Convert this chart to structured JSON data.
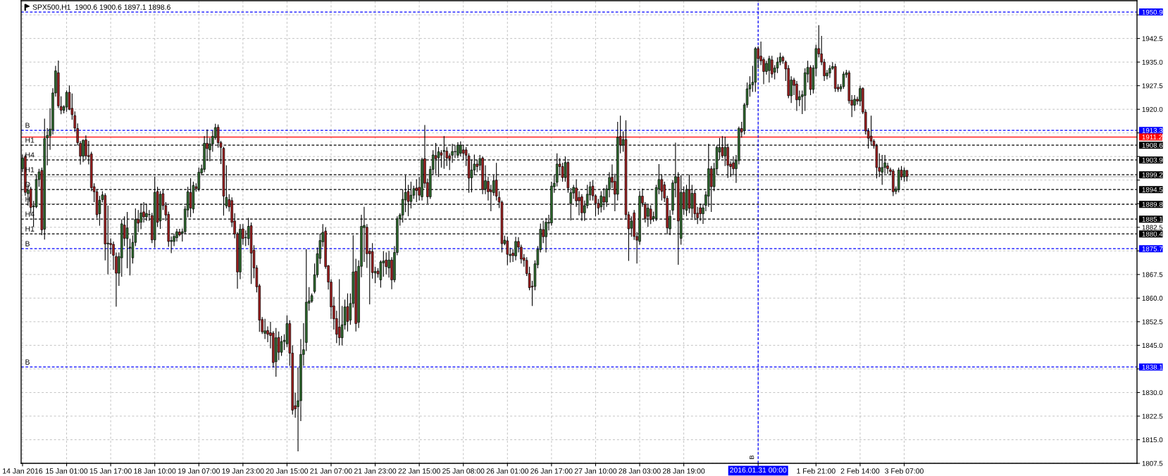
{
  "chart_data": {
    "type": "candlestick",
    "title": "SPX500,H1  1900.6 1900.6 1897.1 1898.6",
    "categories": [
      "14 Jan 2016",
      null,
      null,
      null,
      null,
      null,
      null,
      null,
      null,
      null,
      null,
      null,
      null,
      null,
      null,
      null,
      "15 Jan 01:00",
      null,
      null,
      null,
      null,
      null,
      null,
      null,
      null,
      null,
      null,
      null,
      null,
      null,
      null,
      null,
      "15 Jan 17:00",
      null,
      null,
      null,
      null,
      null,
      null,
      null,
      null,
      null,
      null,
      null,
      null,
      null,
      null,
      null,
      "18 Jan 10:00",
      null,
      null,
      null,
      null,
      null,
      null,
      null,
      null,
      null,
      null,
      null,
      null,
      null,
      null,
      null,
      "19 Jan 07:00",
      null,
      null,
      null,
      null,
      null,
      null,
      null,
      null,
      null,
      null,
      null,
      null,
      null,
      null,
      null,
      "19 Jan 23:00",
      null,
      null,
      null,
      null,
      null,
      null,
      null,
      null,
      null,
      null,
      null,
      null,
      null,
      null,
      null,
      "20 Jan 15:00",
      null,
      null,
      null,
      null,
      null,
      null,
      null,
      null,
      null,
      null,
      null,
      null,
      null,
      null,
      null,
      "21 Jan 07:00",
      null,
      null,
      null,
      null,
      null,
      null,
      null,
      null,
      null,
      null,
      null,
      null,
      null,
      null,
      null,
      "21 Jan 23:00",
      null,
      null,
      null,
      null,
      null,
      null,
      null,
      null,
      null,
      null,
      null,
      null,
      null,
      null,
      null,
      "22 Jan 15:00",
      null,
      null,
      null,
      null,
      null,
      null,
      null,
      null,
      null,
      null,
      null,
      null,
      null,
      null,
      null,
      "25 Jan 08:00",
      null,
      null,
      null,
      null,
      null,
      null,
      null,
      null,
      null,
      null,
      null,
      null,
      null,
      null,
      null,
      "26 Jan 01:00",
      null,
      null,
      null,
      null,
      null,
      null,
      null,
      null,
      null,
      null,
      null,
      null,
      null,
      null,
      null,
      "26 Jan 17:00",
      null,
      null,
      null,
      null,
      null,
      null,
      null,
      null,
      null,
      null,
      null,
      null,
      null,
      null,
      null,
      "27 Jan 10:00",
      null,
      null,
      null,
      null,
      null,
      null,
      null,
      null,
      null,
      null,
      null,
      null,
      null,
      null,
      null,
      "28 Jan 03:00",
      null,
      null,
      null,
      null,
      null,
      null,
      null,
      null,
      null,
      null,
      null,
      null,
      null,
      null,
      null,
      "28 Jan 19:00",
      null,
      null,
      null,
      null,
      null,
      null,
      null,
      null,
      null,
      null,
      null,
      null,
      null,
      null,
      null,
      null,
      null,
      null,
      null,
      null,
      null,
      null,
      null,
      null,
      null,
      null,
      "2016.01.31 00:00",
      null,
      null,
      null,
      null,
      null,
      null,
      null,
      null,
      null,
      null,
      null,
      null,
      null,
      null,
      null,
      null,
      null,
      null,
      null,
      null,
      "1 Feb 21:00",
      null,
      null,
      null,
      null,
      null,
      null,
      null,
      null,
      null,
      null,
      null,
      null,
      null,
      null,
      null,
      "2 Feb 14:00",
      null,
      null,
      null,
      null,
      null,
      null,
      null,
      null,
      null,
      null,
      null,
      null,
      null,
      null,
      null,
      "3 Feb 07:00",
      null,
      null,
      null,
      null,
      null,
      null,
      null,
      null,
      null,
      null,
      null,
      null,
      null,
      null,
      null,
      null,
      null,
      null,
      null,
      null,
      null,
      null,
      null,
      null,
      null,
      null,
      null,
      null,
      null,
      null,
      null,
      null,
      null,
      null,
      null,
      null,
      null,
      null,
      null,
      null,
      null,
      null,
      null,
      null,
      null,
      null,
      null,
      null,
      null,
      null,
      null,
      null,
      null,
      null,
      null,
      null,
      null,
      null,
      null,
      null,
      null,
      null,
      null,
      null,
      null,
      null,
      null,
      null,
      null,
      null,
      null,
      null,
      null,
      null,
      null,
      null,
      null,
      null,
      null,
      null,
      null,
      null,
      null,
      null
    ],
    "ohlc": [
      [
        1901.1,
        1905.6,
        1900.0,
        1904.5
      ],
      [
        1905.0,
        1905.6,
        1892.5,
        1893.6
      ],
      [
        1893.2,
        1896.2,
        1889.4,
        1894.3
      ],
      [
        1894.7,
        1895.4,
        1886.8,
        1888.8
      ],
      [
        1889.0,
        1890.9,
        1882.6,
        1889.3
      ],
      [
        1889.0,
        1899.2,
        1888.6,
        1897.7
      ],
      [
        1897.7,
        1901.1,
        1895.4,
        1900.1
      ],
      [
        1900.6,
        1901.5,
        1880.0,
        1881.7
      ],
      [
        1881.9,
        1917.0,
        1878.6,
        1910.7
      ],
      [
        1910.9,
        1914.0,
        1902.2,
        1911.7
      ],
      [
        1911.6,
        1920.3,
        1907.1,
        1913.7
      ],
      [
        1913.5,
        1926.7,
        1912.0,
        1925.2
      ],
      [
        1925.2,
        1933.8,
        1924.0,
        1932.2
      ],
      [
        1931.6,
        1935.5,
        1920.4,
        1921.1
      ],
      [
        1920.9,
        1924.1,
        1918.4,
        1919.7
      ],
      [
        1919.7,
        1921.3,
        1918.7,
        1920.8
      ],
      [
        1920.7,
        1926.0,
        1919.2,
        1925.4
      ],
      [
        1925.4,
        1927.6,
        1919.7,
        1920.0
      ],
      [
        1920.3,
        1925.0,
        1916.7,
        1918.3
      ],
      [
        1918.0,
        1919.3,
        1912.8,
        1914.0
      ],
      [
        1913.9,
        1915.5,
        1908.5,
        1909.4
      ],
      [
        1909.2,
        1909.9,
        1902.4,
        1905.1
      ],
      [
        1905.1,
        1910.5,
        1903.2,
        1910.1
      ],
      [
        1910.3,
        1911.7,
        1904.0,
        1905.2
      ],
      [
        1905.3,
        1910.0,
        1902.5,
        1905.0
      ],
      [
        1905.8,
        1906.5,
        1894.0,
        1895.1
      ],
      [
        1895.4,
        1896.5,
        1890.5,
        1893.8
      ],
      [
        1893.8,
        1894.5,
        1885.5,
        1886.5
      ],
      [
        1886.8,
        1892.5,
        1883.0,
        1891.1
      ],
      [
        1891.3,
        1894.0,
        1890.4,
        1892.8
      ],
      [
        1892.6,
        1893.3,
        1872.0,
        1877.2
      ],
      [
        1877.2,
        1889.4,
        1867.6,
        1877.5
      ],
      [
        1877.4,
        1879.0,
        1874.0,
        1877.0
      ],
      [
        1877.1,
        1878.0,
        1869.0,
        1873.6
      ],
      [
        1873.2,
        1874.5,
        1857.3,
        1867.9
      ],
      [
        1867.9,
        1874.5,
        1863.9,
        1873.2
      ],
      [
        1872.8,
        1885.0,
        1866.8,
        1883.6
      ],
      [
        1883.2,
        1886.0,
        1876.5,
        1879.0
      ],
      [
        1878.9,
        1887.4,
        1869.5,
        1882.3
      ],
      [
        1875.9,
        1878.9,
        1867.2,
        1876.2
      ],
      [
        1872.8,
        1880.0,
        1871.0,
        1877.7
      ],
      [
        1877.7,
        1888.5,
        1876.5,
        1885.0
      ],
      [
        1885.0,
        1888.0,
        1881.0,
        1883.8
      ],
      [
        1884.1,
        1890.0,
        1881.9,
        1887.1
      ],
      [
        1887.4,
        1890.5,
        1884.0,
        1885.8
      ],
      [
        1885.8,
        1890.0,
        1884.5,
        1886.9
      ],
      [
        1886.5,
        1888.0,
        1884.5,
        1886.6
      ],
      [
        1886.2,
        1887.1,
        1877.5,
        1878.5
      ],
      [
        1878.5,
        1898.6,
        1876.0,
        1893.6
      ],
      [
        1893.9,
        1895.4,
        1882.6,
        1884.1
      ],
      [
        1884.5,
        1894.0,
        1882.0,
        1893.0
      ],
      [
        1893.2,
        1894.4,
        1888.0,
        1889.4
      ],
      [
        1889.4,
        1890.5,
        1884.5,
        1886.4
      ],
      [
        1886.6,
        1887.5,
        1876.3,
        1878.0
      ],
      [
        1878.0,
        1879.6,
        1874.3,
        1878.3
      ],
      [
        1878.0,
        1880.5,
        1876.5,
        1879.6
      ],
      [
        1879.2,
        1882.0,
        1878.0,
        1881.1
      ],
      [
        1881.0,
        1882.0,
        1879.6,
        1880.1
      ],
      [
        1880.6,
        1882.1,
        1878.0,
        1881.1
      ],
      [
        1881.1,
        1889.3,
        1880.4,
        1888.3
      ],
      [
        1888.0,
        1895.4,
        1885.7,
        1893.8
      ],
      [
        1893.6,
        1898.1,
        1885.7,
        1888.6
      ],
      [
        1888.3,
        1897.0,
        1887.0,
        1895.8
      ],
      [
        1895.4,
        1896.5,
        1893.8,
        1894.8
      ],
      [
        1894.7,
        1901.5,
        1894.0,
        1900.0
      ],
      [
        1899.8,
        1902.4,
        1899.0,
        1901.1
      ],
      [
        1900.9,
        1911.5,
        1900.0,
        1909.2
      ],
      [
        1909.2,
        1913.6,
        1903.6,
        1907.5
      ],
      [
        1907.1,
        1910.9,
        1903.5,
        1909.0
      ],
      [
        1909.0,
        1913.3,
        1906.5,
        1911.4
      ],
      [
        1911.0,
        1915.4,
        1910.3,
        1914.2
      ],
      [
        1914.3,
        1915.2,
        1907.8,
        1909.4
      ],
      [
        1909.4,
        1910.0,
        1902.6,
        1907.9
      ],
      [
        1907.6,
        1908.1,
        1886.2,
        1892.4
      ],
      [
        1889.3,
        1902.2,
        1888.5,
        1892.0
      ],
      [
        1891.3,
        1893.0,
        1887.5,
        1889.0
      ],
      [
        1891.0,
        1892.0,
        1882.6,
        1884.1
      ],
      [
        1884.5,
        1887.0,
        1879.0,
        1880.4
      ],
      [
        1880.4,
        1881.0,
        1863.0,
        1868.3
      ],
      [
        1868.3,
        1883.5,
        1866.0,
        1881.9
      ],
      [
        1882.0,
        1883.5,
        1877.0,
        1878.9
      ],
      [
        1879.2,
        1881.5,
        1876.5,
        1879.3
      ],
      [
        1878.9,
        1885.5,
        1876.8,
        1882.8
      ],
      [
        1883.0,
        1884.0,
        1864.5,
        1874.3
      ],
      [
        1875.2,
        1876.8,
        1866.3,
        1869.6
      ],
      [
        1869.6,
        1870.5,
        1861.8,
        1863.6
      ],
      [
        1863.9,
        1864.5,
        1849.3,
        1853.0
      ],
      [
        1853.2,
        1854.0,
        1848.6,
        1849.3
      ],
      [
        1848.8,
        1853.4,
        1847.0,
        1849.6
      ],
      [
        1849.7,
        1851.0,
        1846.0,
        1848.5
      ],
      [
        1849.0,
        1852.5,
        1844.0,
        1848.1
      ],
      [
        1848.9,
        1849.5,
        1838.0,
        1839.5
      ],
      [
        1839.8,
        1850.5,
        1835.0,
        1847.4
      ],
      [
        1847.5,
        1849.4,
        1840.3,
        1842.8
      ],
      [
        1842.8,
        1848.0,
        1841.6,
        1846.2
      ],
      [
        1846.2,
        1848.5,
        1843.5,
        1846.6
      ],
      [
        1845.5,
        1854.5,
        1844.5,
        1851.9
      ],
      [
        1851.9,
        1853.0,
        1838.5,
        1842.5
      ],
      [
        1842.5,
        1845.0,
        1823.0,
        1824.4
      ],
      [
        1825.8,
        1830.0,
        1822.0,
        1824.8
      ],
      [
        1825.5,
        1838.0,
        1811.3,
        1827.4
      ],
      [
        1827.4,
        1847.0,
        1820.9,
        1842.1
      ],
      [
        1842.1,
        1852.0,
        1838.5,
        1843.6
      ],
      [
        1845.9,
        1875.6,
        1843.2,
        1858.7
      ],
      [
        1858.4,
        1863.5,
        1856.0,
        1859.1
      ],
      [
        1859.0,
        1861.5,
        1858.5,
        1860.8
      ],
      [
        1862.1,
        1871.0,
        1861.5,
        1867.4
      ],
      [
        1867.4,
        1876.1,
        1866.5,
        1874.1
      ],
      [
        1872.6,
        1880.5,
        1870.9,
        1878.3
      ],
      [
        1877.9,
        1883.5,
        1876.3,
        1880.9
      ],
      [
        1881.3,
        1882.5,
        1869.3,
        1870.0
      ],
      [
        1870.3,
        1870.5,
        1862.7,
        1865.1
      ],
      [
        1865.1,
        1866.0,
        1853.4,
        1857.2
      ],
      [
        1857.5,
        1860.4,
        1850.0,
        1853.4
      ],
      [
        1853.5,
        1856.0,
        1845.7,
        1848.5
      ],
      [
        1850.8,
        1866.0,
        1845.0,
        1847.4
      ],
      [
        1847.4,
        1857.5,
        1845.0,
        1851.5
      ],
      [
        1851.5,
        1859.5,
        1850.0,
        1857.2
      ],
      [
        1857.3,
        1861.5,
        1849.4,
        1852.6
      ],
      [
        1853.0,
        1861.5,
        1851.5,
        1858.3
      ],
      [
        1858.3,
        1880.0,
        1857.0,
        1868.3
      ],
      [
        1868.5,
        1872.5,
        1849.4,
        1851.9
      ],
      [
        1852.3,
        1872.0,
        1850.5,
        1870.1
      ],
      [
        1870.1,
        1886.5,
        1866.6,
        1882.8
      ],
      [
        1882.4,
        1889.0,
        1871.5,
        1883.1
      ],
      [
        1882.5,
        1883.5,
        1869.6,
        1874.1
      ],
      [
        1874.9,
        1875.9,
        1858.0,
        1874.1
      ],
      [
        1874.8,
        1877.5,
        1866.2,
        1868.1
      ],
      [
        1868.0,
        1870.0,
        1864.7,
        1868.5
      ],
      [
        1868.6,
        1869.5,
        1866.5,
        1867.7
      ],
      [
        1865.8,
        1872.0,
        1863.3,
        1871.5
      ],
      [
        1871.2,
        1874.9,
        1866.8,
        1871.8
      ],
      [
        1872.1,
        1874.5,
        1867.5,
        1870.0
      ],
      [
        1869.6,
        1875.0,
        1866.5,
        1872.1
      ],
      [
        1872.1,
        1873.0,
        1862.8,
        1865.8
      ],
      [
        1865.8,
        1876.5,
        1865.0,
        1874.5
      ],
      [
        1874.5,
        1886.0,
        1873.6,
        1885.2
      ],
      [
        1885.2,
        1887.0,
        1883.0,
        1886.4
      ],
      [
        1886.4,
        1894.6,
        1884.0,
        1891.4
      ],
      [
        1891.2,
        1899.0,
        1887.3,
        1893.6
      ],
      [
        1893.9,
        1896.0,
        1886.0,
        1890.7
      ],
      [
        1890.7,
        1897.0,
        1888.5,
        1892.7
      ],
      [
        1892.7,
        1895.7,
        1891.5,
        1894.8
      ],
      [
        1895.0,
        1897.8,
        1890.5,
        1894.2
      ],
      [
        1895.2,
        1898.5,
        1891.0,
        1892.7
      ],
      [
        1892.2,
        1904.6,
        1891.0,
        1904.0
      ],
      [
        1904.3,
        1915.0,
        1895.0,
        1896.5
      ],
      [
        1896.7,
        1898.0,
        1890.0,
        1892.2
      ],
      [
        1892.2,
        1902.0,
        1891.5,
        1900.9
      ],
      [
        1900.9,
        1907.0,
        1899.0,
        1905.5
      ],
      [
        1905.3,
        1909.3,
        1899.5,
        1904.3
      ],
      [
        1904.6,
        1908.0,
        1898.5,
        1906.5
      ],
      [
        1906.2,
        1907.0,
        1901.5,
        1905.4
      ],
      [
        1906.6,
        1911.5,
        1901.1,
        1906.9
      ],
      [
        1906.7,
        1908.0,
        1902.0,
        1904.5
      ],
      [
        1905.2,
        1906.0,
        1900.7,
        1904.3
      ],
      [
        1905.4,
        1909.0,
        1903.0,
        1906.6
      ],
      [
        1906.5,
        1908.5,
        1904.5,
        1906.6
      ],
      [
        1905.4,
        1909.5,
        1904.5,
        1908.6
      ],
      [
        1906.0,
        1909.8,
        1905.0,
        1908.6
      ],
      [
        1907.1,
        1908.6,
        1904.0,
        1906.0
      ],
      [
        1907.1,
        1908.0,
        1902.0,
        1905.4
      ],
      [
        1905.2,
        1906.0,
        1893.5,
        1898.1
      ],
      [
        1898.2,
        1904.0,
        1893.6,
        1900.7
      ],
      [
        1900.7,
        1905.6,
        1899.0,
        1902.6
      ],
      [
        1902.6,
        1904.0,
        1900.0,
        1901.8
      ],
      [
        1902.2,
        1905.5,
        1900.6,
        1904.3
      ],
      [
        1904.5,
        1905.0,
        1893.0,
        1894.5
      ],
      [
        1894.7,
        1902.2,
        1893.0,
        1897.3
      ],
      [
        1897.1,
        1898.5,
        1891.0,
        1893.8
      ],
      [
        1894.3,
        1896.0,
        1887.6,
        1893.8
      ],
      [
        1893.5,
        1899.0,
        1892.5,
        1897.3
      ],
      [
        1897.5,
        1903.0,
        1891.0,
        1892.4
      ],
      [
        1892.0,
        1894.0,
        1888.6,
        1890.5
      ],
      [
        1890.5,
        1891.0,
        1874.5,
        1877.3
      ],
      [
        1877.3,
        1879.8,
        1876.8,
        1878.4
      ],
      [
        1878.2,
        1879.5,
        1870.5,
        1873.9
      ],
      [
        1873.5,
        1876.0,
        1871.3,
        1873.9
      ],
      [
        1874.3,
        1875.5,
        1871.5,
        1873.5
      ],
      [
        1873.4,
        1879.5,
        1872.0,
        1878.0
      ],
      [
        1878.0,
        1879.4,
        1874.5,
        1876.2
      ],
      [
        1876.2,
        1877.0,
        1871.0,
        1872.4
      ],
      [
        1872.8,
        1874.0,
        1870.0,
        1872.0
      ],
      [
        1872.0,
        1873.0,
        1867.0,
        1867.8
      ],
      [
        1867.8,
        1870.0,
        1862.5,
        1863.3
      ],
      [
        1863.8,
        1865.5,
        1857.5,
        1863.5
      ],
      [
        1863.7,
        1872.0,
        1862.5,
        1870.9
      ],
      [
        1870.6,
        1876.5,
        1869.5,
        1875.5
      ],
      [
        1875.4,
        1883.7,
        1874.5,
        1881.9
      ],
      [
        1881.8,
        1884.6,
        1877.5,
        1879.5
      ],
      [
        1879.5,
        1885.5,
        1874.5,
        1884.1
      ],
      [
        1883.8,
        1886.5,
        1881.5,
        1884.1
      ],
      [
        1883.9,
        1897.0,
        1883.0,
        1895.6
      ],
      [
        1895.4,
        1899.0,
        1893.5,
        1896.5
      ],
      [
        1896.8,
        1906.0,
        1895.5,
        1902.6
      ],
      [
        1902.6,
        1904.5,
        1899.0,
        1901.8
      ],
      [
        1901.8,
        1903.0,
        1897.0,
        1898.3
      ],
      [
        1898.3,
        1905.0,
        1897.0,
        1903.1
      ],
      [
        1903.1,
        1903.5,
        1893.5,
        1895.0
      ],
      [
        1890.1,
        1895.0,
        1884.7,
        1893.5
      ],
      [
        1893.4,
        1896.0,
        1891.5,
        1895.2
      ],
      [
        1895.0,
        1897.8,
        1889.0,
        1890.9
      ],
      [
        1892.0,
        1894.0,
        1886.3,
        1890.9
      ],
      [
        1892.2,
        1893.0,
        1884.5,
        1887.1
      ],
      [
        1887.1,
        1891.0,
        1884.5,
        1889.4
      ],
      [
        1889.4,
        1896.0,
        1888.5,
        1893.0
      ],
      [
        1892.8,
        1897.0,
        1891.0,
        1895.4
      ],
      [
        1895.6,
        1897.5,
        1891.0,
        1892.5
      ],
      [
        1892.5,
        1893.0,
        1886.0,
        1890.1
      ],
      [
        1890.1,
        1891.5,
        1886.5,
        1888.6
      ],
      [
        1889.0,
        1894.0,
        1887.2,
        1892.5
      ],
      [
        1892.2,
        1895.0,
        1888.0,
        1890.5
      ],
      [
        1890.5,
        1896.0,
        1889.0,
        1894.7
      ],
      [
        1894.5,
        1900.0,
        1892.0,
        1898.3
      ],
      [
        1898.4,
        1902.5,
        1895.0,
        1896.8
      ],
      [
        1897.1,
        1899.5,
        1887.6,
        1893.0
      ],
      [
        1893.0,
        1916.0,
        1891.0,
        1911.1
      ],
      [
        1911.4,
        1918.0,
        1906.0,
        1908.6
      ],
      [
        1908.6,
        1913.0,
        1906.5,
        1910.4
      ],
      [
        1910.4,
        1916.5,
        1885.0,
        1886.5
      ],
      [
        1886.5,
        1887.5,
        1871.8,
        1882.0
      ],
      [
        1882.2,
        1886.0,
        1879.5,
        1884.5
      ],
      [
        1887.1,
        1888.0,
        1878.5,
        1879.6
      ],
      [
        1879.6,
        1881.0,
        1871.0,
        1878.4
      ],
      [
        1878.0,
        1894.0,
        1877.0,
        1892.4
      ],
      [
        1892.4,
        1894.8,
        1889.0,
        1890.2
      ],
      [
        1889.8,
        1890.5,
        1884.0,
        1885.3
      ],
      [
        1886.0,
        1889.6,
        1882.6,
        1888.6
      ],
      [
        1888.3,
        1889.5,
        1883.5,
        1884.9
      ],
      [
        1885.2,
        1887.5,
        1884.3,
        1885.9
      ],
      [
        1885.3,
        1896.0,
        1884.5,
        1895.1
      ],
      [
        1894.7,
        1902.6,
        1893.0,
        1897.7
      ],
      [
        1897.7,
        1899.3,
        1891.0,
        1893.9
      ],
      [
        1896.0,
        1897.0,
        1890.5,
        1891.8
      ],
      [
        1891.7,
        1892.5,
        1880.3,
        1882.3
      ],
      [
        1882.0,
        1888.0,
        1880.0,
        1886.0
      ],
      [
        1887.9,
        1897.5,
        1886.5,
        1896.6
      ],
      [
        1896.6,
        1909.4,
        1892.0,
        1898.6
      ],
      [
        1898.5,
        1900.0,
        1870.6,
        1884.5
      ],
      [
        1879.0,
        1899.0,
        1877.0,
        1893.6
      ],
      [
        1893.6,
        1895.5,
        1886.5,
        1888.3
      ],
      [
        1887.9,
        1896.0,
        1886.0,
        1894.5
      ],
      [
        1894.5,
        1899.3,
        1887.0,
        1888.5
      ],
      [
        1888.5,
        1896.0,
        1885.5,
        1893.3
      ],
      [
        1893.3,
        1894.5,
        1884.8,
        1886.8
      ],
      [
        1887.0,
        1889.0,
        1883.5,
        1885.5
      ],
      [
        1888.7,
        1890.0,
        1884.5,
        1886.8
      ],
      [
        1886.8,
        1890.0,
        1883.6,
        1888.7
      ],
      [
        1889.5,
        1894.0,
        1887.6,
        1892.8
      ],
      [
        1892.4,
        1909.0,
        1889.0,
        1901.1
      ],
      [
        1901.1,
        1902.0,
        1887.4,
        1895.4
      ],
      [
        1895.4,
        1903.0,
        1894.0,
        1901.1
      ],
      [
        1901.1,
        1908.5,
        1899.2,
        1907.9
      ],
      [
        1906.4,
        1910.9,
        1904.0,
        1907.9
      ],
      [
        1907.9,
        1911.5,
        1904.5,
        1905.2
      ],
      [
        1905.2,
        1911.3,
        1902.0,
        1907.9
      ],
      [
        1907.9,
        1909.0,
        1898.2,
        1902.2
      ],
      [
        1902.6,
        1903.5,
        1898.5,
        1901.8
      ],
      [
        1903.0,
        1905.0,
        1899.0,
        1901.1
      ],
      [
        1901.1,
        1905.5,
        1896.6,
        1903.7
      ],
      [
        1903.7,
        1914.5,
        1902.5,
        1913.9
      ],
      [
        1913.9,
        1916.0,
        1911.0,
        1912.8
      ],
      [
        1913.2,
        1922.0,
        1912.0,
        1921.4
      ],
      [
        1921.4,
        1928.5,
        1920.5,
        1926.5
      ],
      [
        1926.5,
        1930.5,
        1924.0,
        1927.8
      ],
      [
        1927.8,
        1933.8,
        1925.5,
        1928.6
      ],
      [
        1928.6,
        1939.8,
        1925.5,
        1939.3
      ],
      [
        1939.3,
        1940.0,
        1933.0,
        1936.1
      ],
      [
        1936.9,
        1941.5,
        1934.0,
        1935.4
      ],
      [
        1935.8,
        1936.5,
        1928.0,
        1932.0
      ],
      [
        1932.0,
        1935.4,
        1931.0,
        1934.6
      ],
      [
        1932.3,
        1937.0,
        1928.5,
        1936.1
      ],
      [
        1935.7,
        1937.0,
        1930.0,
        1931.2
      ],
      [
        1931.8,
        1934.0,
        1929.5,
        1933.1
      ],
      [
        1933.1,
        1936.5,
        1931.5,
        1935.0
      ],
      [
        1935.0,
        1938.0,
        1934.0,
        1936.6
      ],
      [
        1936.5,
        1937.0,
        1934.5,
        1935.4
      ],
      [
        1935.0,
        1935.5,
        1929.0,
        1932.8
      ],
      [
        1933.0,
        1934.0,
        1923.5,
        1924.3
      ],
      [
        1924.3,
        1930.5,
        1922.0,
        1929.3
      ],
      [
        1929.3,
        1930.0,
        1924.5,
        1927.6
      ],
      [
        1928.0,
        1929.0,
        1919.5,
        1923.0
      ],
      [
        1923.0,
        1926.0,
        1921.0,
        1924.0
      ],
      [
        1924.0,
        1926.0,
        1918.5,
        1924.6
      ],
      [
        1924.4,
        1933.0,
        1919.5,
        1931.6
      ],
      [
        1931.2,
        1935.4,
        1928.5,
        1933.3
      ],
      [
        1933.3,
        1934.0,
        1924.5,
        1926.3
      ],
      [
        1926.3,
        1934.0,
        1925.0,
        1933.1
      ],
      [
        1933.0,
        1940.5,
        1930.5,
        1939.3
      ],
      [
        1939.3,
        1946.7,
        1936.5,
        1937.6
      ],
      [
        1937.6,
        1943.3,
        1934.0,
        1935.0
      ],
      [
        1935.0,
        1936.0,
        1929.0,
        1930.6
      ],
      [
        1930.6,
        1932.5,
        1929.5,
        1931.5
      ],
      [
        1931.5,
        1934.0,
        1930.0,
        1933.0
      ],
      [
        1933.0,
        1935.0,
        1932.5,
        1933.6
      ],
      [
        1933.6,
        1934.5,
        1925.5,
        1926.6
      ],
      [
        1927.0,
        1928.0,
        1925.5,
        1926.4
      ],
      [
        1926.5,
        1928.0,
        1925.6,
        1927.2
      ],
      [
        1927.2,
        1932.0,
        1926.5,
        1931.2
      ],
      [
        1931.0,
        1932.5,
        1930.0,
        1931.6
      ],
      [
        1931.6,
        1932.3,
        1921.8,
        1922.7
      ],
      [
        1922.9,
        1924.5,
        1917.5,
        1921.3
      ],
      [
        1921.3,
        1924.5,
        1919.5,
        1923.2
      ],
      [
        1923.2,
        1924.0,
        1921.5,
        1922.6
      ],
      [
        1922.6,
        1927.5,
        1921.0,
        1926.6
      ],
      [
        1926.6,
        1927.0,
        1918.5,
        1919.1
      ],
      [
        1919.1,
        1920.0,
        1912.0,
        1913.1
      ],
      [
        1913.1,
        1914.0,
        1907.5,
        1910.8
      ],
      [
        1911.5,
        1918.0,
        1908.5,
        1909.9
      ],
      [
        1909.9,
        1910.5,
        1907.5,
        1908.4
      ],
      [
        1908.4,
        1909.0,
        1898.0,
        1901.5
      ],
      [
        1901.5,
        1906.0,
        1898.5,
        1900.3
      ],
      [
        1900.0,
        1905.5,
        1896.0,
        1901.5
      ],
      [
        1901.5,
        1905.5,
        1899.5,
        1903.0
      ],
      [
        1902.0,
        1903.0,
        1899.5,
        1901.1
      ],
      [
        1900.8,
        1901.5,
        1899.0,
        1900.2
      ],
      [
        1900.4,
        1901.0,
        1892.4,
        1893.8
      ],
      [
        1893.9,
        1895.5,
        1893.0,
        1894.7
      ],
      [
        1894.5,
        1901.5,
        1893.6,
        1900.7
      ],
      [
        1900.7,
        1902.0,
        1897.5,
        1898.5
      ],
      [
        1898.5,
        1901.5,
        1897.0,
        1900.6
      ],
      [
        1900.6,
        1900.6,
        1897.1,
        1898.6
      ],
      null,
      null,
      null,
      null,
      null,
      null,
      null,
      null,
      null,
      null,
      null,
      null,
      null,
      null,
      null,
      null,
      null,
      null,
      null,
      null,
      null,
      null,
      null,
      null,
      null,
      null,
      null,
      null,
      null,
      null,
      null,
      null,
      null,
      null,
      null,
      null,
      null,
      null,
      null,
      null,
      null,
      null,
      null,
      null,
      null,
      null,
      null,
      null,
      null,
      null,
      null,
      null,
      null,
      null,
      null,
      null,
      null,
      null,
      null,
      null,
      null,
      null,
      null,
      null,
      null,
      null,
      null,
      null,
      null,
      null,
      null,
      null,
      null,
      null,
      null,
      null,
      null,
      null,
      null,
      null,
      null,
      null,
      null
    ],
    "ylim": [
      1807.5,
      1954.5
    ],
    "yticks": [
      1807.5,
      {
        "value": 1815,
        "label": "1815.0"
      },
      1822.5,
      {
        "value": 1830,
        "label": "1830.0"
      },
      {
        "value": 1837.5,
        "label": null
      },
      {
        "value": 1845,
        "label": "1845.0"
      },
      1852.5,
      {
        "value": 1860,
        "label": "1860.0"
      },
      1867.5,
      {
        "value": 1875,
        "label": null
      },
      1882.5,
      {
        "value": 1890,
        "label": null
      },
      {
        "value": 1897.5,
        "label": null
      },
      {
        "value": 1905,
        "label": null
      },
      {
        "value": 1912.5,
        "label": null
      },
      {
        "value": 1920,
        "label": "1920.0"
      },
      1927.5,
      {
        "value": 1935,
        "label": "1935.0"
      },
      1942.5,
      {
        "value": 1950,
        "label": null
      }
    ],
    "grid": true,
    "ref_lines": [
      {
        "axis": "y",
        "value": 1950.9,
        "label": "1950.9",
        "color": "#0000ff",
        "line_style": "dashed"
      },
      {
        "axis": "y",
        "value": 1913.3,
        "label": "1913.3",
        "color": "#0000ff",
        "line_style": "dashed"
      },
      {
        "axis": "y",
        "value": 1911.2,
        "label": "1911.2",
        "color": "#ff0000",
        "line_style": "solid"
      },
      {
        "axis": "y",
        "value": 1908.6,
        "label": "1908.6",
        "color": "#000000",
        "line_style": "dashed"
      },
      {
        "axis": "y",
        "value": 1903.9,
        "label": "1903.9",
        "color": "#000000",
        "line_style": "dashed"
      },
      {
        "axis": "y",
        "value": 1899.2,
        "label": "1899.2",
        "color": "#000000",
        "line_style": "dashed"
      },
      {
        "axis": "y",
        "value": 1898.6,
        "color": "#c0c0c0",
        "line_style": "solid"
      },
      {
        "axis": "y",
        "value": 1894.5,
        "label": "1894.5",
        "color": "#000000",
        "line_style": "dashed"
      },
      {
        "axis": "y",
        "value": 1889.8,
        "label": "1889.8",
        "color": "#000000",
        "line_style": "dashed"
      },
      {
        "axis": "y",
        "value": 1885.1,
        "label": "1885.1",
        "color": "#000000",
        "line_style": "dashed"
      },
      {
        "axis": "y",
        "value": 1880.4,
        "label": "1880.4",
        "color": "#000000",
        "line_style": "dashed"
      },
      {
        "axis": "y",
        "value": 1875.7,
        "label": "1875.7",
        "color": "#0000ff",
        "line_style": "dashed"
      },
      {
        "axis": "y",
        "value": 1838.1,
        "label": "1838.1",
        "color": "#0000ff",
        "line_style": "dashed"
      },
      {
        "axis": "x",
        "value": "2016.01.31 00:00",
        "color": "#0000ff",
        "line_style": "dashed"
      }
    ],
    "annotations": [
      {
        "text": "B",
        "y": 1913.3
      },
      {
        "text": "H1",
        "y": 1908.6
      },
      {
        "text": "H4",
        "y": 1903.9
      },
      {
        "text": "H1",
        "y": 1899.2
      },
      {
        "text": "D",
        "y": 1894.5
      },
      {
        "text": "H",
        "y": 1889.8
      },
      {
        "text": "H4",
        "y": 1885.1
      },
      {
        "text": "H1",
        "y": 1880.4
      },
      {
        "text": "B",
        "y": 1875.7
      },
      {
        "text": "B",
        "y": 1838.1
      },
      {
        "text": "B",
        "x": "2016.01.31 00:00"
      }
    ]
  }
}
